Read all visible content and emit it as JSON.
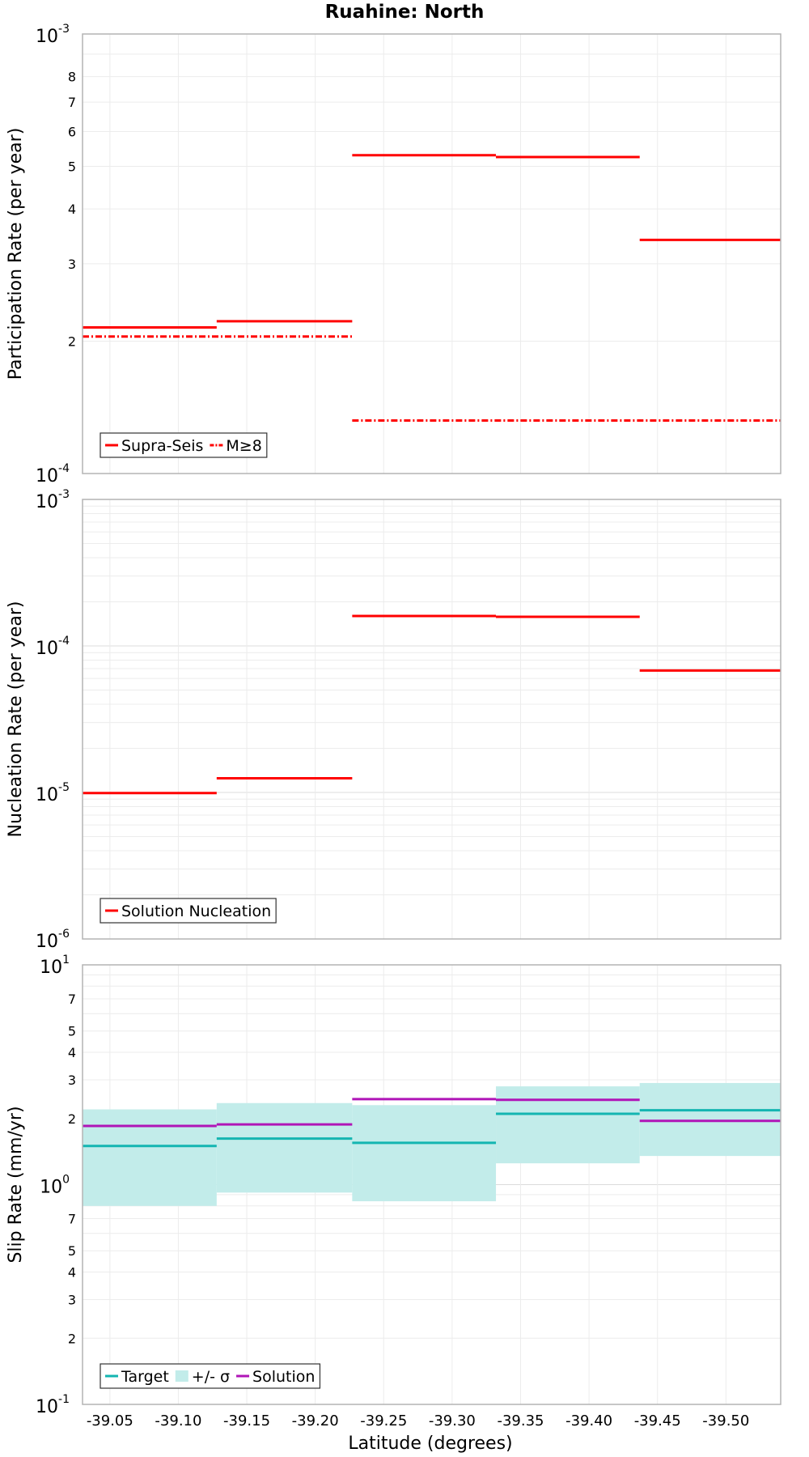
{
  "chart_data": {
    "title": "Ruahine: North",
    "xlabel": "Latitude (degrees)",
    "xlim": [
      -39.03,
      -39.54
    ],
    "x_ticks": [
      "-39.05",
      "-39.10",
      "-39.15",
      "-39.20",
      "-39.25",
      "-39.30",
      "-39.35",
      "-39.40",
      "-39.45",
      "-39.50"
    ],
    "x_tick_values": [
      -39.05,
      -39.1,
      -39.15,
      -39.2,
      -39.25,
      -39.3,
      -39.35,
      -39.4,
      -39.45,
      -39.5
    ],
    "grid": true,
    "panels": [
      {
        "type": "line",
        "ylabel": "Participation Rate (per year)",
        "yscale": "log",
        "ylim": [
          0.0001,
          0.001
        ],
        "y_major_ticks": [
          {
            "base": "10",
            "exp": "-4",
            "value": 0.0001
          },
          {
            "base": "10",
            "exp": "-3",
            "value": 0.001
          }
        ],
        "y_minor_ticks": [
          {
            "label": "2",
            "value": 0.0002
          },
          {
            "label": "3",
            "value": 0.0003
          },
          {
            "label": "4",
            "value": 0.0004
          },
          {
            "label": "5",
            "value": 0.0005
          },
          {
            "label": "6",
            "value": 0.0006
          },
          {
            "label": "7",
            "value": 0.0007
          },
          {
            "label": "8",
            "value": 0.0008
          }
        ],
        "legend": {
          "position": "bottom-left",
          "items": [
            {
              "label": "Supra-Seis",
              "style": "solid",
              "color": "#ff0000"
            },
            {
              "label": "M≥8",
              "style": "dashdot",
              "color": "#ff0000"
            }
          ]
        },
        "series": [
          {
            "name": "Supra-Seis",
            "color": "#ff0000",
            "style": "solid",
            "segments": [
              {
                "x0": -39.03,
                "x1": -39.128,
                "y": 0.000215
              },
              {
                "x0": -39.128,
                "x1": -39.227,
                "y": 0.000222
              },
              {
                "x0": -39.227,
                "x1": -39.332,
                "y": 0.00053
              },
              {
                "x0": -39.332,
                "x1": -39.437,
                "y": 0.000525
              },
              {
                "x0": -39.437,
                "x1": -39.54,
                "y": 0.00034
              }
            ]
          },
          {
            "name": "M≥8",
            "color": "#ff0000",
            "style": "dashdot",
            "segments": [
              {
                "x0": -39.03,
                "x1": -39.227,
                "y": 0.000205
              },
              {
                "x0": -39.227,
                "x1": -39.54,
                "y": 0.000132
              }
            ]
          }
        ]
      },
      {
        "type": "line",
        "ylabel": "Nucleation Rate (per year)",
        "yscale": "log",
        "ylim": [
          1e-06,
          0.001
        ],
        "y_major_ticks": [
          {
            "base": "10",
            "exp": "-6",
            "value": 1e-06
          },
          {
            "base": "10",
            "exp": "-5",
            "value": 1e-05
          },
          {
            "base": "10",
            "exp": "-4",
            "value": 0.0001
          },
          {
            "base": "10",
            "exp": "-3",
            "value": 0.001
          }
        ],
        "y_minor_ticks": [],
        "legend": {
          "position": "bottom-left",
          "items": [
            {
              "label": "Solution Nucleation",
              "style": "solid",
              "color": "#ff0000"
            }
          ]
        },
        "series": [
          {
            "name": "Solution Nucleation",
            "color": "#ff0000",
            "style": "solid",
            "segments": [
              {
                "x0": -39.03,
                "x1": -39.128,
                "y": 9.9e-06
              },
              {
                "x0": -39.128,
                "x1": -39.227,
                "y": 1.25e-05
              },
              {
                "x0": -39.227,
                "x1": -39.332,
                "y": 0.00016
              },
              {
                "x0": -39.332,
                "x1": -39.437,
                "y": 0.000158
              },
              {
                "x0": -39.437,
                "x1": -39.54,
                "y": 6.8e-05
              }
            ]
          }
        ]
      },
      {
        "type": "line",
        "ylabel": "Slip Rate (mm/yr)",
        "yscale": "log",
        "ylim": [
          0.1,
          10
        ],
        "y_major_ticks": [
          {
            "base": "10",
            "exp": "-1",
            "value": 0.1
          },
          {
            "base": "10",
            "exp": "0",
            "value": 1
          },
          {
            "base": "10",
            "exp": "1",
            "value": 10
          }
        ],
        "y_minor_ticks": [
          {
            "label": "2",
            "value": 0.2
          },
          {
            "label": "3",
            "value": 0.3
          },
          {
            "label": "4",
            "value": 0.4
          },
          {
            "label": "5",
            "value": 0.5
          },
          {
            "label": "7",
            "value": 0.7
          },
          {
            "label": "2",
            "value": 2
          },
          {
            "label": "3",
            "value": 3
          },
          {
            "label": "4",
            "value": 4
          },
          {
            "label": "5",
            "value": 5
          },
          {
            "label": "7",
            "value": 7
          }
        ],
        "legend": {
          "position": "bottom-left",
          "items": [
            {
              "label": "Target",
              "style": "solid",
              "color": "#13b5b1"
            },
            {
              "label": "+/- σ",
              "style": "band",
              "color": "#c2ecea"
            },
            {
              "label": "Solution",
              "style": "solid",
              "color": "#b015b7"
            }
          ]
        },
        "bands": [
          {
            "name": "+/- σ",
            "color": "#c2ecea",
            "segments": [
              {
                "x0": -39.03,
                "x1": -39.128,
                "y0": 0.8,
                "y1": 2.2
              },
              {
                "x0": -39.128,
                "x1": -39.227,
                "y0": 0.92,
                "y1": 2.35
              },
              {
                "x0": -39.227,
                "x1": -39.332,
                "y0": 0.84,
                "y1": 2.3
              },
              {
                "x0": -39.332,
                "x1": -39.437,
                "y0": 1.25,
                "y1": 2.8
              },
              {
                "x0": -39.437,
                "x1": -39.54,
                "y0": 1.35,
                "y1": 2.9
              }
            ]
          }
        ],
        "series": [
          {
            "name": "Target",
            "color": "#13b5b1",
            "style": "solid",
            "segments": [
              {
                "x0": -39.03,
                "x1": -39.128,
                "y": 1.5
              },
              {
                "x0": -39.128,
                "x1": -39.227,
                "y": 1.62
              },
              {
                "x0": -39.227,
                "x1": -39.332,
                "y": 1.55
              },
              {
                "x0": -39.332,
                "x1": -39.437,
                "y": 2.1
              },
              {
                "x0": -39.437,
                "x1": -39.54,
                "y": 2.18
              }
            ]
          },
          {
            "name": "Solution",
            "color": "#b015b7",
            "style": "solid",
            "segments": [
              {
                "x0": -39.03,
                "x1": -39.128,
                "y": 1.85
              },
              {
                "x0": -39.128,
                "x1": -39.227,
                "y": 1.88
              },
              {
                "x0": -39.227,
                "x1": -39.332,
                "y": 2.45
              },
              {
                "x0": -39.332,
                "x1": -39.437,
                "y": 2.43
              },
              {
                "x0": -39.437,
                "x1": -39.54,
                "y": 1.95
              }
            ]
          }
        ]
      }
    ]
  }
}
